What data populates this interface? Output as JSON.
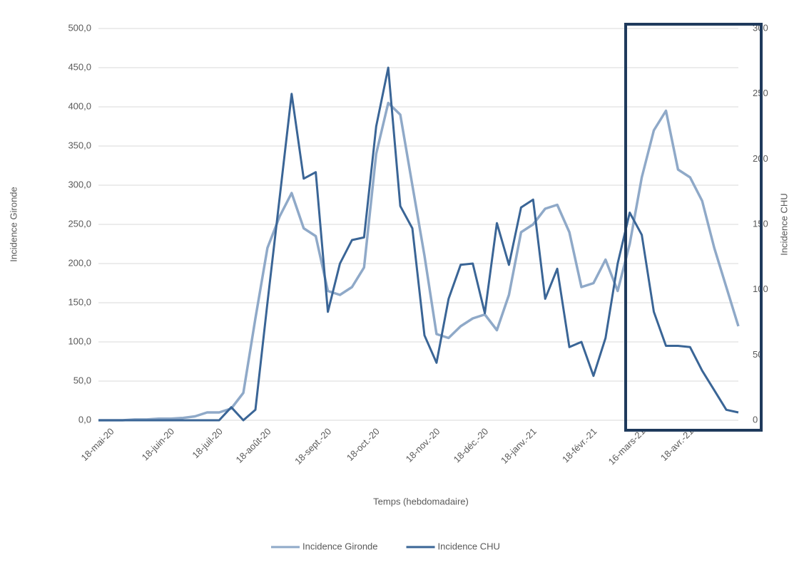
{
  "chart_data": {
    "type": "line",
    "categories": [
      "18-mai-20",
      null,
      null,
      null,
      null,
      "18-juin-20",
      null,
      null,
      null,
      "18-juil-20",
      null,
      null,
      null,
      "18-août-20",
      null,
      null,
      null,
      null,
      "18-sept.-20",
      null,
      null,
      null,
      "18-oct.-20",
      null,
      null,
      null,
      null,
      "18-nov.-20",
      null,
      null,
      null,
      "18-déc.-20",
      null,
      null,
      null,
      "18-janv.-21",
      null,
      null,
      null,
      null,
      "18-févr.-21",
      null,
      null,
      null,
      "16-mars-21",
      null,
      null,
      null,
      "18-avr.-21",
      null,
      null,
      null,
      null,
      null
    ],
    "series": [
      {
        "name": "Incidence Gironde",
        "color": "#8fa9c8",
        "axis": "y",
        "values": [
          0,
          0,
          0,
          1,
          1,
          2,
          2,
          3,
          5,
          10,
          10,
          15,
          35,
          130,
          220,
          260,
          290,
          245,
          235,
          165,
          160,
          170,
          195,
          340,
          405,
          390,
          300,
          210,
          110,
          105,
          120,
          130,
          135,
          115,
          160,
          240,
          250,
          270,
          275,
          240,
          170,
          175,
          205,
          165,
          225,
          310,
          370,
          395,
          320,
          310,
          280,
          220,
          170,
          120
        ]
      },
      {
        "name": "Incidence CHU",
        "color": "#3a6596",
        "axis": "y2",
        "values": [
          0,
          0,
          0,
          0,
          0,
          0,
          0,
          0,
          0,
          0,
          0,
          10,
          0,
          8,
          90,
          170,
          250,
          185,
          190,
          83,
          120,
          138,
          140,
          225,
          270,
          164,
          147,
          65,
          44,
          93,
          119,
          120,
          82,
          151,
          119,
          163,
          169,
          93,
          116,
          56,
          60,
          34,
          63,
          120,
          159,
          142,
          83,
          57,
          57,
          56,
          38,
          23,
          8,
          6
        ]
      }
    ],
    "x_label": "Temps (hebdomadaire)",
    "y_label": "Incidence Gironde",
    "y2_label": "Incidence CHU",
    "ylim": [
      0,
      500
    ],
    "yticks": [
      {
        "value": 0,
        "label": "0,0"
      },
      {
        "value": 50,
        "label": "50,0"
      },
      {
        "value": 100,
        "label": "100,0"
      },
      {
        "value": 150,
        "label": "150,0"
      },
      {
        "value": 200,
        "label": "200,0"
      },
      {
        "value": 250,
        "label": "250,0"
      },
      {
        "value": 300,
        "label": "300,0"
      },
      {
        "value": 350,
        "label": "350,0"
      },
      {
        "value": 400,
        "label": "400,0"
      },
      {
        "value": 450,
        "label": "450,0"
      },
      {
        "value": 500,
        "label": "500,0"
      }
    ],
    "y2lim": [
      0,
      300
    ],
    "y2ticks": [
      0,
      50,
      100,
      150,
      200,
      250,
      300
    ],
    "grid": true,
    "legend": "bottom"
  }
}
